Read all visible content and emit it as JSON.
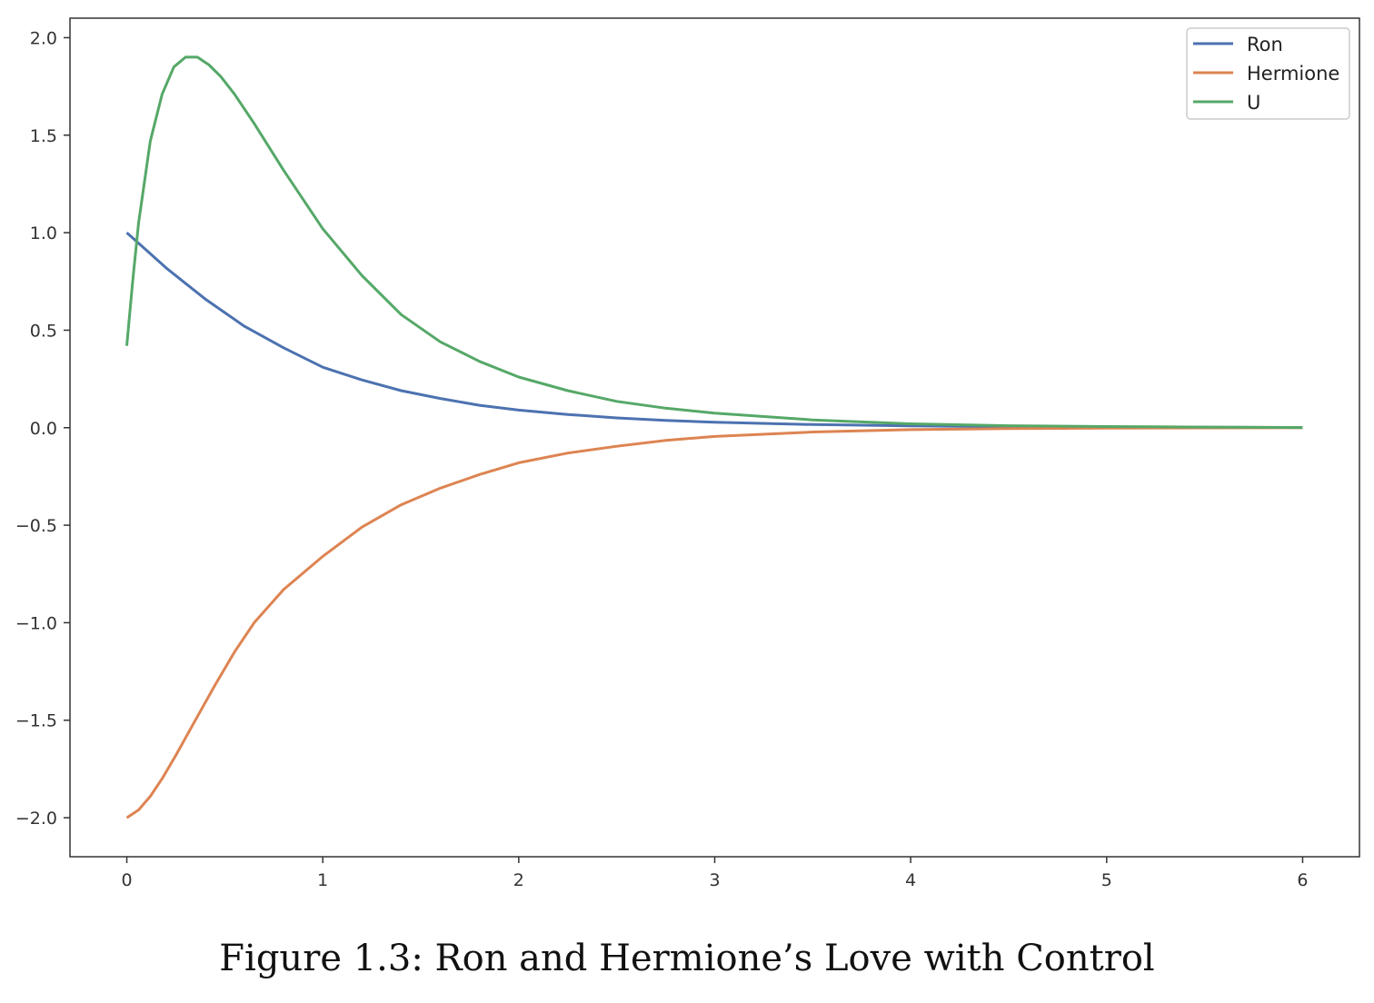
{
  "caption": "Figure 1.3: Ron and Hermione’s Love with Control",
  "chart_data": {
    "type": "line",
    "title": "",
    "xlabel": "",
    "ylabel": "",
    "xlim": [
      -0.29,
      6.29
    ],
    "ylim": [
      -2.2,
      2.1
    ],
    "xticks": [
      0,
      1,
      2,
      3,
      4,
      5,
      6
    ],
    "xtick_labels": [
      "0",
      "1",
      "2",
      "3",
      "4",
      "5",
      "6"
    ],
    "yticks": [
      2.0,
      1.5,
      1.0,
      0.5,
      0.0,
      -0.5,
      -1.0,
      -1.5,
      -2.0
    ],
    "ytick_labels": [
      "2.0",
      "1.5",
      "1.0",
      "0.5",
      "0.0",
      "−0.5",
      "−1.0",
      "−1.5",
      "−2.0"
    ],
    "grid": false,
    "legend": "top-right",
    "series": [
      {
        "name": "Ron",
        "color": "#4c72b0",
        "x": [
          0,
          0.1,
          0.2,
          0.3,
          0.4,
          0.5,
          0.6,
          0.8,
          1.0,
          1.2,
          1.4,
          1.6,
          1.8,
          2.0,
          2.25,
          2.5,
          2.75,
          3.0,
          3.5,
          4.0,
          4.5,
          5.0,
          5.5,
          6.0
        ],
        "values": [
          1.0,
          0.91,
          0.82,
          0.74,
          0.66,
          0.59,
          0.52,
          0.41,
          0.31,
          0.245,
          0.19,
          0.15,
          0.115,
          0.09,
          0.068,
          0.05,
          0.037,
          0.028,
          0.016,
          0.009,
          0.005,
          0.003,
          0.002,
          0.001
        ]
      },
      {
        "name": "Hermione",
        "color": "#dd8452",
        "x": [
          0,
          0.06,
          0.12,
          0.18,
          0.25,
          0.35,
          0.45,
          0.55,
          0.65,
          0.8,
          1.0,
          1.2,
          1.4,
          1.6,
          1.8,
          2.0,
          2.25,
          2.5,
          2.75,
          3.0,
          3.5,
          4.0,
          4.5,
          5.0,
          5.5,
          6.0
        ],
        "values": [
          -2.0,
          -1.96,
          -1.89,
          -1.8,
          -1.68,
          -1.5,
          -1.32,
          -1.15,
          -1.0,
          -0.83,
          -0.66,
          -0.51,
          -0.395,
          -0.31,
          -0.24,
          -0.18,
          -0.13,
          -0.095,
          -0.065,
          -0.045,
          -0.022,
          -0.01,
          -0.005,
          -0.002,
          -0.001,
          0.0
        ]
      },
      {
        "name": "U",
        "color": "#55a868",
        "x": [
          0,
          0.03,
          0.06,
          0.12,
          0.18,
          0.24,
          0.3,
          0.36,
          0.42,
          0.48,
          0.55,
          0.65,
          0.8,
          1.0,
          1.2,
          1.4,
          1.6,
          1.8,
          2.0,
          2.25,
          2.5,
          2.75,
          3.0,
          3.5,
          4.0,
          4.5,
          5.0,
          5.5,
          6.0
        ],
        "values": [
          0.42,
          0.75,
          1.05,
          1.47,
          1.71,
          1.85,
          1.9,
          1.9,
          1.86,
          1.8,
          1.71,
          1.56,
          1.32,
          1.02,
          0.78,
          0.58,
          0.44,
          0.34,
          0.26,
          0.19,
          0.135,
          0.1,
          0.075,
          0.04,
          0.02,
          0.01,
          0.006,
          0.003,
          0.001
        ]
      }
    ]
  }
}
